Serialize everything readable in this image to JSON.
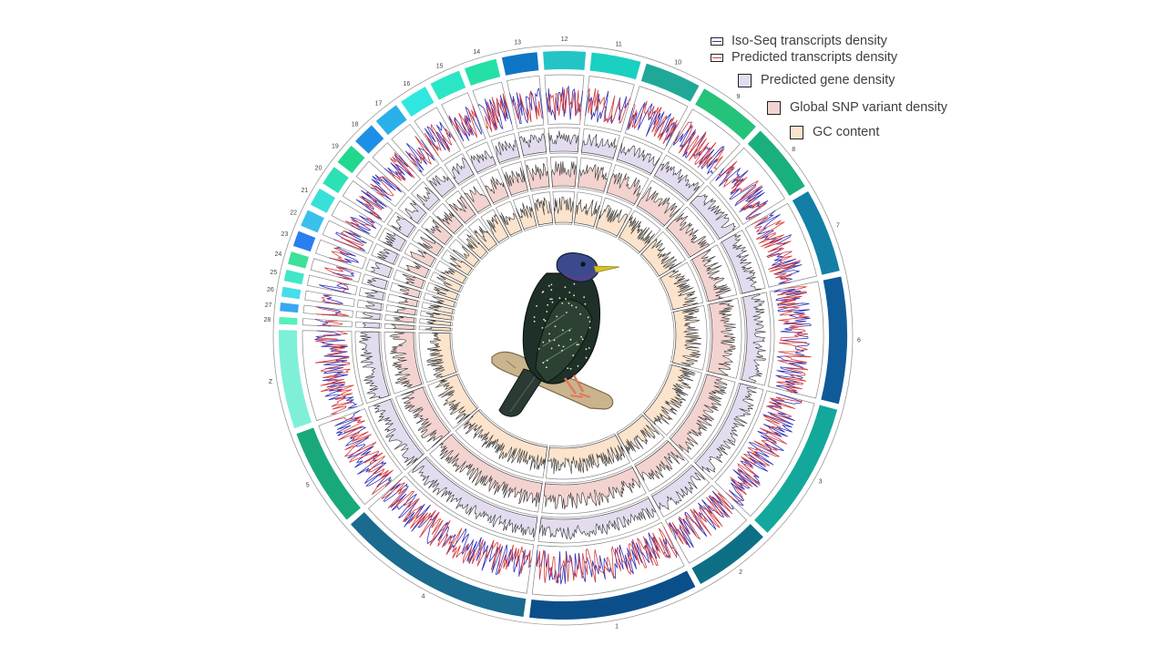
{
  "figure": {
    "chromosome_labels": [
      "1",
      "2",
      "3",
      "4",
      "5",
      "6",
      "7",
      "8",
      "9",
      "10",
      "11",
      "12",
      "13",
      "14",
      "15",
      "16",
      "17",
      "18",
      "19",
      "20",
      "21",
      "22",
      "23",
      "24",
      "25",
      "26",
      "27",
      "28",
      "Z"
    ],
    "tracks": [
      "Iso-Seq transcripts density",
      "Predicted transcripts density",
      "Predicted gene density",
      "Global SNP variant density",
      "GC content"
    ]
  },
  "legend": {
    "iso_seq": "Iso-Seq transcripts density",
    "predicted_transcripts": "Predicted transcripts density",
    "predicted_gene": "Predicted gene density",
    "snp": "Global SNP variant density",
    "gc": "GC content"
  },
  "colors": {
    "iso_seq_line": "#2d2fb8",
    "predicted_line": "#d43a3a",
    "gene_fill": "#e3dcef",
    "snp_fill": "#f3d3cf",
    "gc_fill": "#fbe3cc",
    "ring_stroke": "#8a8a8a"
  },
  "center_image": "starling-bird-illustration"
}
